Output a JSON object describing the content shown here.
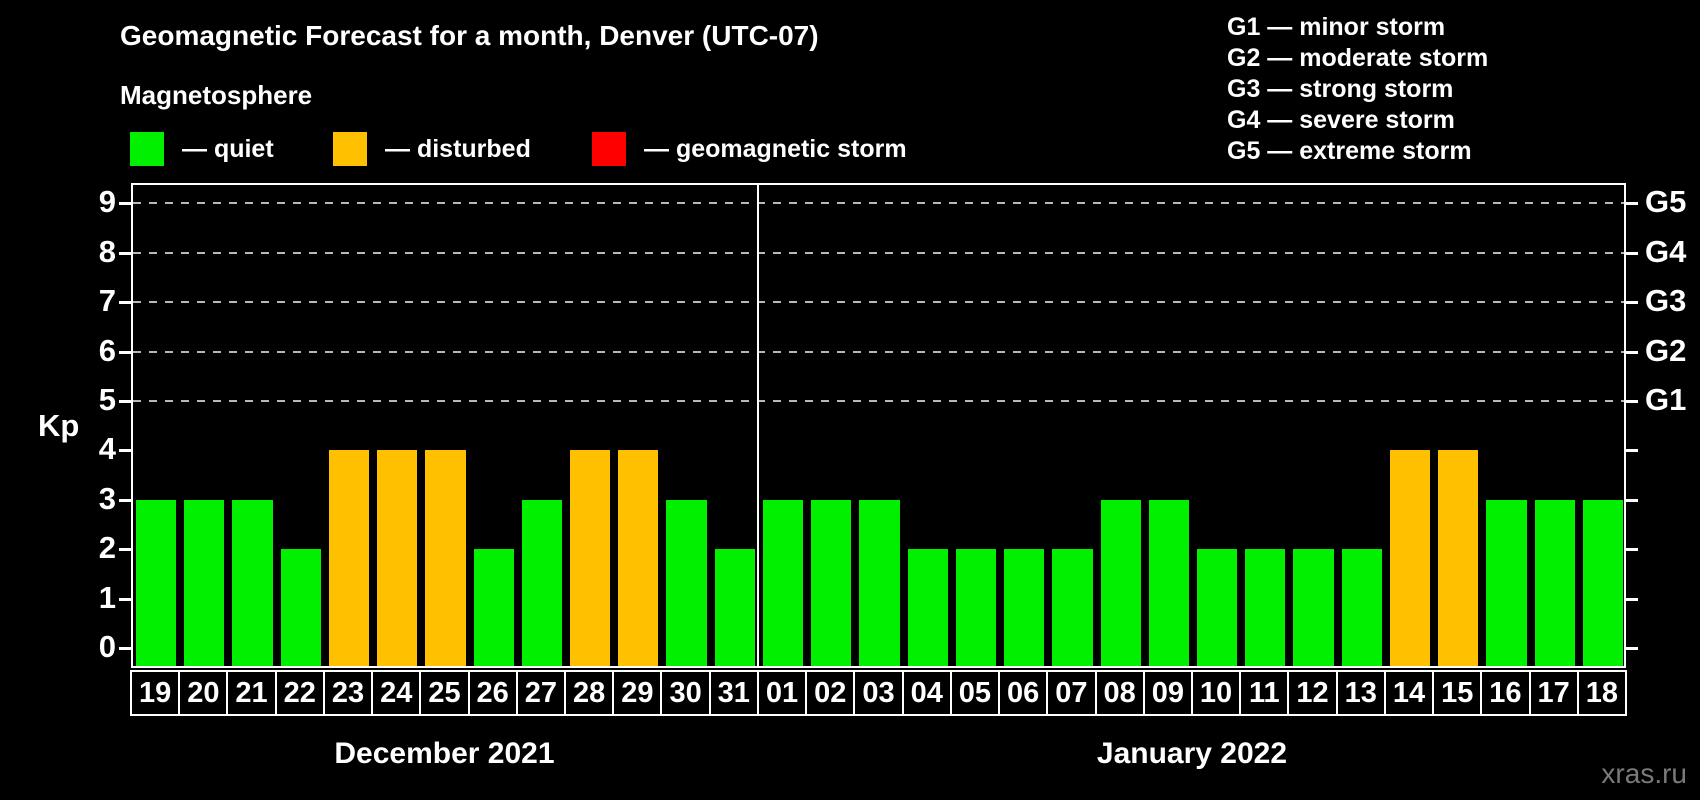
{
  "title": "Geomagnetic Forecast for a month, Denver (UTC-07)",
  "subtitle": "Magnetosphere",
  "legend": {
    "items": [
      {
        "key": "quiet",
        "label": "— quiet",
        "color": "#00f000"
      },
      {
        "key": "disturbed",
        "label": "— disturbed",
        "color": "#ffc000"
      },
      {
        "key": "storm",
        "label": "— geomagnetic storm",
        "color": "#ff0000"
      }
    ]
  },
  "storm_scale_legend": [
    "G1 — minor storm",
    "G2 — moderate storm",
    "G3 — strong storm",
    "G4 — severe storm",
    "G5 — extreme storm"
  ],
  "watermark": "xras.ru",
  "chart_data": {
    "type": "bar",
    "title": "Geomagnetic Forecast for a month, Denver (UTC-07)",
    "ylabel": "Kp",
    "ylim": [
      0,
      9
    ],
    "yticks": [
      0,
      1,
      2,
      3,
      4,
      5,
      6,
      7,
      8,
      9
    ],
    "gridlines_at": [
      5,
      6,
      7,
      8,
      9
    ],
    "grid_style": "dashed",
    "legend_position": "top",
    "right_axis_labels": [
      {
        "kp": 5,
        "label": "G1"
      },
      {
        "kp": 6,
        "label": "G2"
      },
      {
        "kp": 7,
        "label": "G3"
      },
      {
        "kp": 8,
        "label": "G4"
      },
      {
        "kp": 9,
        "label": "G5"
      }
    ],
    "colors": {
      "quiet": "#00f000",
      "disturbed": "#ffc000",
      "storm": "#ff0000"
    },
    "months": [
      {
        "label": "December 2021",
        "days": [
          {
            "day": "19",
            "kp": 3,
            "status": "quiet"
          },
          {
            "day": "20",
            "kp": 3,
            "status": "quiet"
          },
          {
            "day": "21",
            "kp": 3,
            "status": "quiet"
          },
          {
            "day": "22",
            "kp": 2,
            "status": "quiet"
          },
          {
            "day": "23",
            "kp": 4,
            "status": "disturbed"
          },
          {
            "day": "24",
            "kp": 4,
            "status": "disturbed"
          },
          {
            "day": "25",
            "kp": 4,
            "status": "disturbed"
          },
          {
            "day": "26",
            "kp": 2,
            "status": "quiet"
          },
          {
            "day": "27",
            "kp": 3,
            "status": "quiet"
          },
          {
            "day": "28",
            "kp": 4,
            "status": "disturbed"
          },
          {
            "day": "29",
            "kp": 4,
            "status": "disturbed"
          },
          {
            "day": "30",
            "kp": 3,
            "status": "quiet"
          },
          {
            "day": "31",
            "kp": 2,
            "status": "quiet"
          }
        ]
      },
      {
        "label": "January 2022",
        "days": [
          {
            "day": "01",
            "kp": 3,
            "status": "quiet"
          },
          {
            "day": "02",
            "kp": 3,
            "status": "quiet"
          },
          {
            "day": "03",
            "kp": 3,
            "status": "quiet"
          },
          {
            "day": "04",
            "kp": 2,
            "status": "quiet"
          },
          {
            "day": "05",
            "kp": 2,
            "status": "quiet"
          },
          {
            "day": "06",
            "kp": 2,
            "status": "quiet"
          },
          {
            "day": "07",
            "kp": 2,
            "status": "quiet"
          },
          {
            "day": "08",
            "kp": 3,
            "status": "quiet"
          },
          {
            "day": "09",
            "kp": 3,
            "status": "quiet"
          },
          {
            "day": "10",
            "kp": 2,
            "status": "quiet"
          },
          {
            "day": "11",
            "kp": 2,
            "status": "quiet"
          },
          {
            "day": "12",
            "kp": 2,
            "status": "quiet"
          },
          {
            "day": "13",
            "kp": 2,
            "status": "quiet"
          },
          {
            "day": "14",
            "kp": 4,
            "status": "disturbed"
          },
          {
            "day": "15",
            "kp": 4,
            "status": "disturbed"
          },
          {
            "day": "16",
            "kp": 3,
            "status": "quiet"
          },
          {
            "day": "17",
            "kp": 3,
            "status": "quiet"
          },
          {
            "day": "18",
            "kp": 3,
            "status": "quiet"
          }
        ]
      }
    ]
  }
}
